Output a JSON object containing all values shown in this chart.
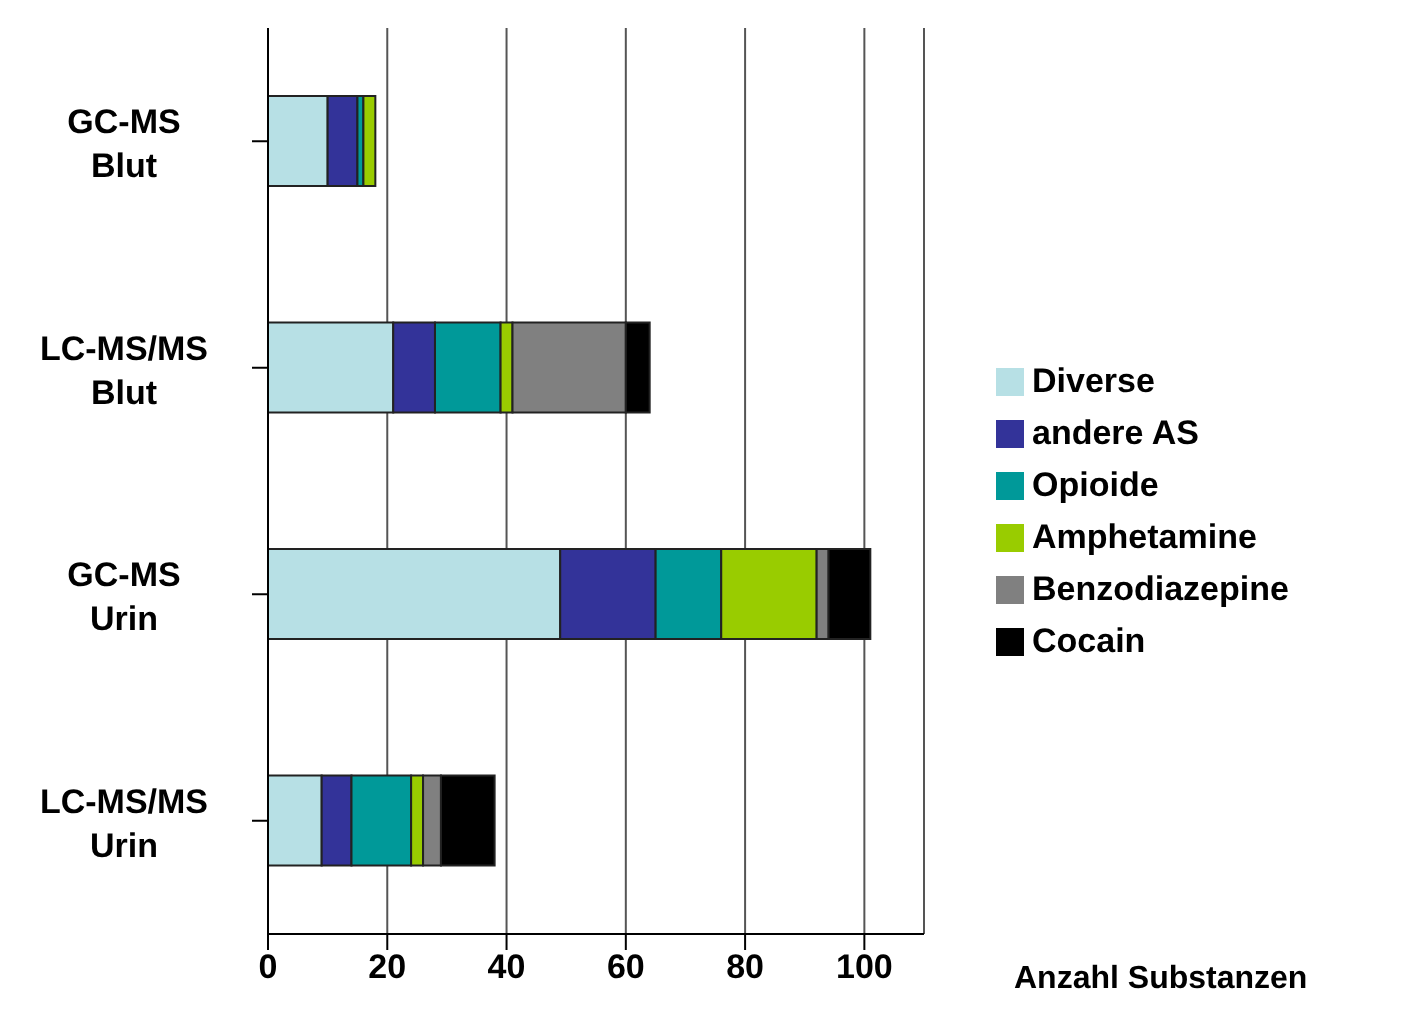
{
  "chart_data": {
    "type": "bar",
    "orientation": "horizontal",
    "stacked": true,
    "xlabel": "Anzahl Substanzen",
    "categories": [
      "GC-MS Blut",
      "LC-MS/MS Blut",
      "GC-MS Urin",
      "LC-MS/MS Urin"
    ],
    "series": [
      {
        "name": "Diverse",
        "color": "#b7e0e5",
        "values": [
          10,
          21,
          49,
          9
        ]
      },
      {
        "name": "andere AS",
        "color": "#333399",
        "values": [
          5,
          7,
          16,
          5
        ]
      },
      {
        "name": "Opioide",
        "color": "#009999",
        "values": [
          1,
          11,
          11,
          10
        ]
      },
      {
        "name": "Amphetamine",
        "color": "#99cc00",
        "values": [
          2,
          2,
          16,
          2
        ]
      },
      {
        "name": "Benzodiazepine",
        "color": "#808080",
        "values": [
          0,
          19,
          2,
          3
        ]
      },
      {
        "name": "Cocain",
        "color": "#000000",
        "values": [
          0,
          4,
          7,
          9
        ]
      }
    ],
    "xlim": [
      0,
      110
    ],
    "xticks": [
      0,
      20,
      40,
      60,
      80,
      100
    ],
    "grid": "x",
    "legend": "right"
  }
}
